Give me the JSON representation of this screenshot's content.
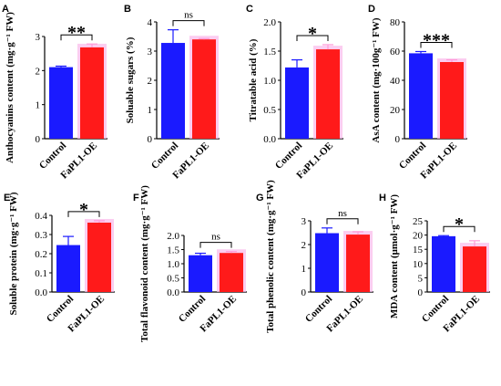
{
  "colors": {
    "control": "#1a1aff",
    "treatment": "#ff1a1a",
    "treatment_glow": "#f9b8ea",
    "axis": "#000000",
    "error_control": "#1a1aff",
    "error_treatment": "#ff9ad8"
  },
  "chart_data": [
    {
      "letter": "A",
      "type": "bar",
      "ylabel": "Anthocyanins content (mg·g⁻¹ FW)",
      "categories": [
        "Control",
        "FaPL1-OE"
      ],
      "values": [
        2.1,
        2.68
      ],
      "errors": [
        0.03,
        0.1
      ],
      "ylim": [
        0,
        3
      ],
      "yticks": [
        "0",
        "1",
        "2",
        "3"
      ],
      "significance": "**"
    },
    {
      "letter": "B",
      "type": "bar",
      "ylabel": "Soluable sugars (%)",
      "categories": [
        "Control",
        "FaPL1-OE"
      ],
      "values": [
        3.28,
        3.4
      ],
      "errors": [
        0.45,
        0.03
      ],
      "ylim": [
        0,
        4
      ],
      "yticks": [
        "0",
        "1",
        "2",
        "3",
        "4"
      ],
      "significance": "ns"
    },
    {
      "letter": "C",
      "type": "bar",
      "ylabel": "Titratable acid (%)",
      "categories": [
        "Control",
        "FaPL1-OE"
      ],
      "values": [
        1.22,
        1.53
      ],
      "errors": [
        0.13,
        0.08
      ],
      "ylim": [
        0,
        2
      ],
      "yticks": [
        "0.0",
        "0.5",
        "1.0",
        "1.5",
        "2.0"
      ],
      "significance": "*"
    },
    {
      "letter": "D",
      "type": "bar",
      "ylabel": "AsA content (mg·100g⁻¹ FW)",
      "categories": [
        "Control",
        "FaPL1-OE"
      ],
      "values": [
        58.5,
        52.5
      ],
      "errors": [
        1.2,
        1.5
      ],
      "ylim": [
        0,
        80
      ],
      "yticks": [
        "0",
        "20",
        "40",
        "60",
        "80"
      ],
      "significance": "***"
    },
    {
      "letter": "E",
      "type": "bar",
      "ylabel": "Soluble protein (mg·g⁻¹ FW)",
      "categories": [
        "Control",
        "FaPL1-OE"
      ],
      "values": [
        0.245,
        0.362
      ],
      "errors": [
        0.045,
        0.01
      ],
      "ylim": [
        0,
        0.4
      ],
      "yticks": [
        "0.0",
        "0.1",
        "0.2",
        "0.3",
        "0.4"
      ],
      "significance": "*"
    },
    {
      "letter": "F",
      "type": "bar",
      "ylabel": "Total flavonoid content (mg·g⁻¹ FW)",
      "categories": [
        "Control",
        "FaPL1-OE"
      ],
      "values": [
        1.3,
        1.38
      ],
      "errors": [
        0.07,
        0.05
      ],
      "ylim": [
        0,
        2
      ],
      "yticks": [
        "0.0",
        "0.5",
        "1.0",
        "1.5",
        "2.0"
      ],
      "significance": "ns"
    },
    {
      "letter": "G",
      "type": "bar",
      "ylabel": "Total phenolic content (mg·g⁻¹ FW)",
      "categories": [
        "Control",
        "FaPL1-OE"
      ],
      "values": [
        2.48,
        2.42
      ],
      "errors": [
        0.22,
        0.12
      ],
      "ylim": [
        0,
        3
      ],
      "yticks": [
        "0",
        "1",
        "2",
        "3"
      ],
      "significance": "ns"
    },
    {
      "letter": "H",
      "type": "bar",
      "ylabel": "MDA content (μmol·g⁻¹ FW)",
      "categories": [
        "Control",
        "FaPL1-OE"
      ],
      "values": [
        19.6,
        16.0
      ],
      "errors": [
        0.2,
        2.0
      ],
      "ylim": [
        0,
        25
      ],
      "yticks": [
        "0",
        "5",
        "10",
        "15",
        "20",
        "25"
      ],
      "significance": "*"
    }
  ]
}
